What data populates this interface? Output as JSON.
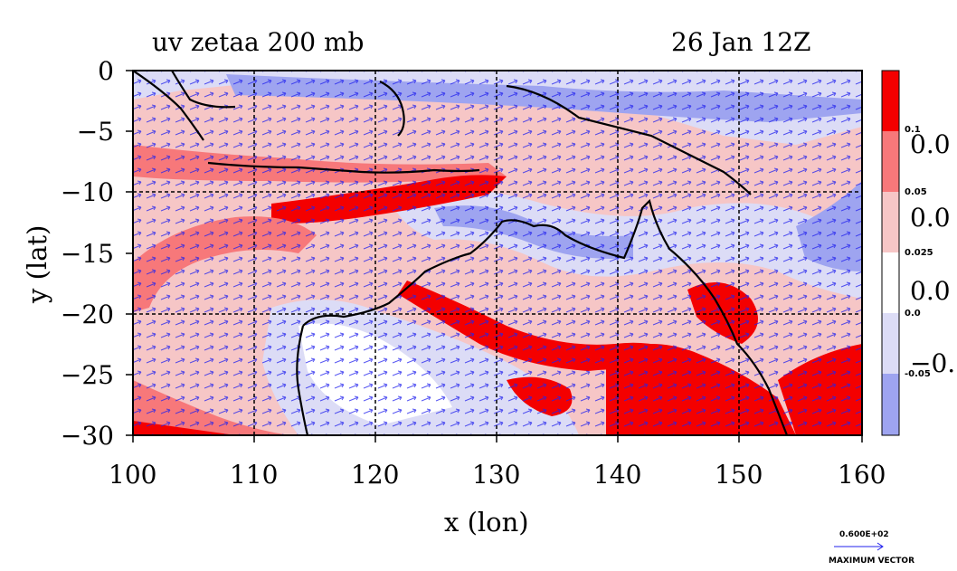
{
  "title_left": "uv zetaa 200 mb",
  "title_right": "26 Jan 12Z",
  "x_label": "x (lon)",
  "y_label": "y (lat)",
  "x_ticks": [
    "100",
    "110",
    "120",
    "130",
    "140",
    "150",
    "160"
  ],
  "y_ticks": [
    "0",
    "−5",
    "−10",
    "−15",
    "−20",
    "−25",
    "−30"
  ],
  "colorbar": {
    "small_labels": [
      "0.1",
      "0.05",
      "0.025",
      "0.0",
      "-0.05"
    ],
    "big_labels": [
      "0.0",
      "0.0",
      "0.0",
      "−0."
    ],
    "colors": [
      "#f40000",
      "#f7787a",
      "#f6c6c6",
      "#ffffff",
      "#dcdcf6",
      "#9ea4f0"
    ]
  },
  "vector_legend": {
    "value": "0.600E+02",
    "caption": "MAXIMUM VECTOR",
    "color": "#2222ee"
  },
  "colors": {
    "strong_positive": "#f40000",
    "positive": "#f7787a",
    "weak_positive": "#f6c6c6",
    "weak_negative": "#dcdcf6",
    "negative": "#9ea4f0",
    "coast": "#000000",
    "vector": "#2222ee"
  }
}
